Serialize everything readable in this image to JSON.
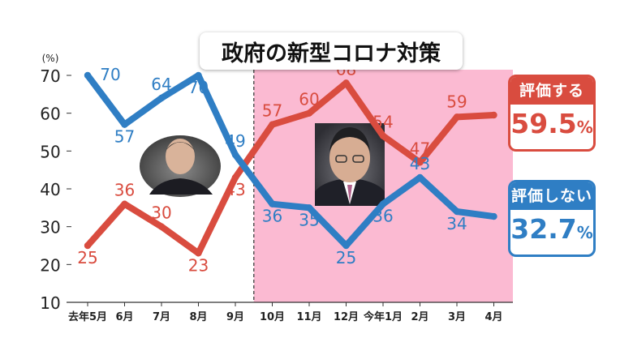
{
  "title": "政府の新型コロナ対策",
  "colors": {
    "approve": "#d94c3f",
    "disapprove": "#2f7ec4",
    "shade": "#fbbad2",
    "background": "#ffffff"
  },
  "legend": {
    "approve": {
      "label": "評価する",
      "value": "59.5",
      "unit": "%"
    },
    "disapprove": {
      "label": "評価しない",
      "value": "32.7",
      "unit": "%"
    }
  },
  "photos": {
    "left": "suga-photo",
    "right": "kishida-photo"
  },
  "chart_data": {
    "type": "line",
    "ylabel": "(%)",
    "ylim": [
      10,
      70
    ],
    "yticks": [
      "70",
      "60",
      "50",
      "40",
      "30",
      "20",
      "10"
    ],
    "categories": [
      "去年5月",
      "6月",
      "7月",
      "8月",
      "9月",
      "10月",
      "11月",
      "12月",
      "今年1月",
      "2月",
      "3月",
      "4月"
    ],
    "shaded_from_category_index": 5,
    "divider": "dashed",
    "series": [
      {
        "key": "approve",
        "values": [
          25,
          36,
          30,
          23,
          43,
          57,
          60,
          68,
          54,
          47,
          59,
          59.5
        ],
        "labels": [
          "25",
          "36",
          "30",
          "23",
          "43",
          "57",
          "60",
          "68",
          "54",
          "47",
          "59",
          ""
        ]
      },
      {
        "key": "disapprove",
        "values": [
          70,
          57,
          64,
          70,
          49,
          36,
          35,
          25,
          36,
          43,
          34,
          32.7
        ],
        "labels": [
          "70",
          "57",
          "64",
          "70",
          "49",
          "36",
          "35",
          "25",
          "36",
          "43",
          "34",
          ""
        ]
      }
    ]
  }
}
